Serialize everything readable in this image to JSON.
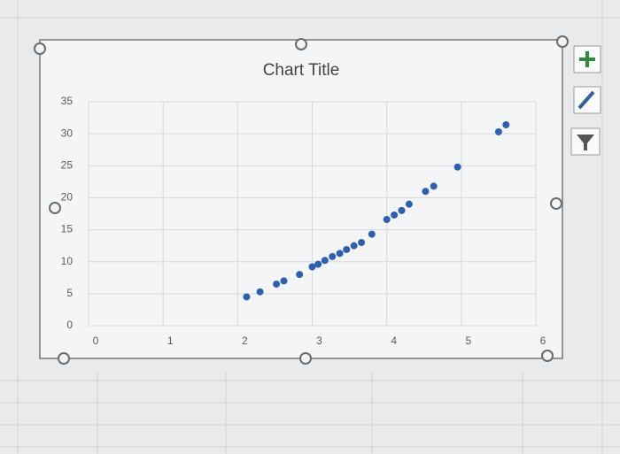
{
  "chart_data": {
    "type": "scatter",
    "title": "Chart Title",
    "x": [
      2.12,
      2.3,
      2.52,
      2.62,
      2.83,
      3.0,
      3.08,
      3.17,
      3.27,
      3.37,
      3.46,
      3.56,
      3.66,
      3.8,
      4.0,
      4.1,
      4.2,
      4.3,
      4.52,
      4.63,
      4.95,
      5.5,
      5.6
    ],
    "series": [
      {
        "color": "#2f5faf",
        "values": [
          4.5,
          5.3,
          6.5,
          7,
          8,
          9.2,
          9.6,
          10.2,
          10.8,
          11.3,
          11.9,
          12.5,
          13,
          14.3,
          16.6,
          17.3,
          18,
          19,
          21,
          21.8,
          24.8,
          30.3,
          31.4
        ]
      }
    ],
    "xlim": [
      0,
      6
    ],
    "xticks": [
      0,
      1,
      2,
      3,
      4,
      5,
      6
    ],
    "ylim": [
      0,
      35
    ],
    "yticks": [
      0,
      5,
      10,
      15,
      20,
      25,
      30,
      35
    ],
    "grid": true
  }
}
